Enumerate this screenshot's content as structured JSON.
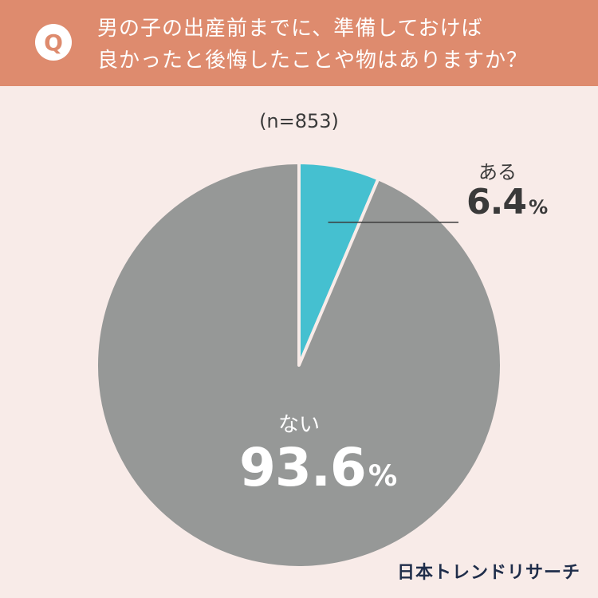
{
  "header": {
    "badge": "Q",
    "question_line1": "男の子の出産前までに、準備しておけば",
    "question_line2": "良かったと後悔したことや物はありますか？"
  },
  "colors": {
    "header_bg": "#de8b6e",
    "page_bg": "#f8ebe8",
    "aru": "#45c0d0",
    "nai": "#969897"
  },
  "chart_data": {
    "type": "pie",
    "sample_note": "(n=853)",
    "slices": [
      {
        "label": "ある",
        "value": 6.4,
        "display": "6.4",
        "unit": "%",
        "color": "#45c0d0"
      },
      {
        "label": "ない",
        "value": 93.6,
        "display": "93.6",
        "unit": "%",
        "color": "#969897"
      }
    ]
  },
  "brand": "日本トレンドリサーチ"
}
